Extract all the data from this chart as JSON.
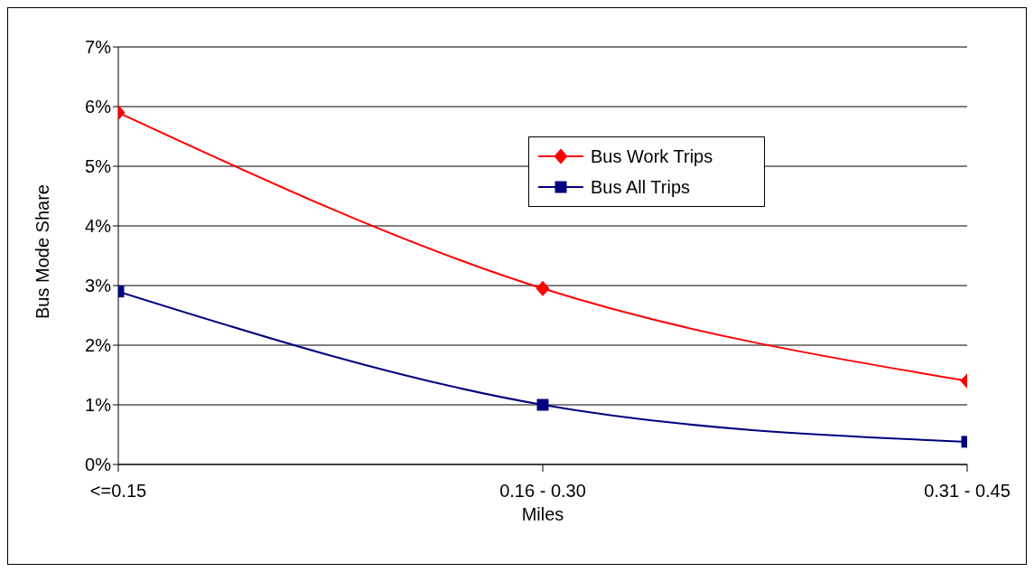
{
  "chart_data": {
    "type": "line",
    "xlabel": "Miles",
    "ylabel": "Bus Mode Share",
    "categories": [
      "<=0.15",
      "0.16 - 0.30",
      "0.31 - 0.45"
    ],
    "series": [
      {
        "name": "Bus Work Trips",
        "color": "#ff0000",
        "marker": "diamond",
        "values": [
          5.9,
          2.95,
          1.4
        ]
      },
      {
        "name": "Bus All Trips",
        "color": "#000080",
        "marker": "square",
        "values": [
          2.9,
          1.0,
          0.38
        ]
      }
    ],
    "ylim": [
      0,
      7
    ],
    "yticks": [
      {
        "value": 0,
        "label": "0%"
      },
      {
        "value": 1,
        "label": "1%"
      },
      {
        "value": 2,
        "label": "2%"
      },
      {
        "value": 3,
        "label": "3%"
      },
      {
        "value": 4,
        "label": "4%"
      },
      {
        "value": 5,
        "label": "5%"
      },
      {
        "value": 6,
        "label": "6%"
      },
      {
        "value": 7,
        "label": "7%"
      }
    ],
    "grid": "y",
    "legend": "top right"
  }
}
